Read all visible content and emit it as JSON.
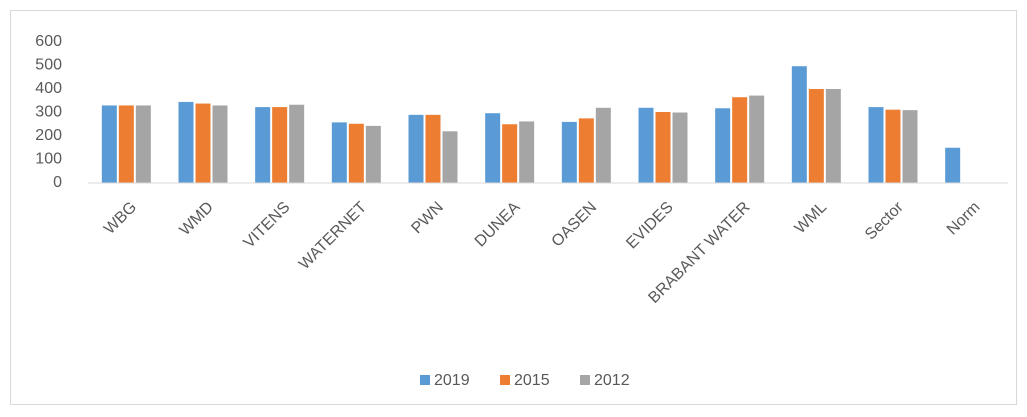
{
  "chart_data": {
    "type": "bar",
    "categories": [
      "WBG",
      "WMD",
      "VITENS",
      "WATERNET",
      "PWN",
      "DUNEA",
      "OASEN",
      "EVIDES",
      "BRABANT WATER",
      "WML",
      "Sector",
      "Norm"
    ],
    "series": [
      {
        "name": "2019",
        "color": "#5b9bd5",
        "values": [
          330,
          345,
          323,
          258,
          290,
          297,
          260,
          320,
          318,
          497,
          323,
          150
        ]
      },
      {
        "name": "2015",
        "color": "#ed7d31",
        "values": [
          330,
          338,
          323,
          252,
          290,
          250,
          275,
          302,
          365,
          400,
          312,
          null
        ]
      },
      {
        "name": "2012",
        "color": "#a5a5a5",
        "values": [
          330,
          330,
          333,
          243,
          220,
          262,
          320,
          300,
          372,
          400,
          310,
          null
        ]
      }
    ],
    "ylim": [
      0,
      600
    ],
    "yticks": [
      0,
      100,
      200,
      300,
      400,
      500,
      600
    ],
    "grid": false,
    "legend": "bottom"
  }
}
